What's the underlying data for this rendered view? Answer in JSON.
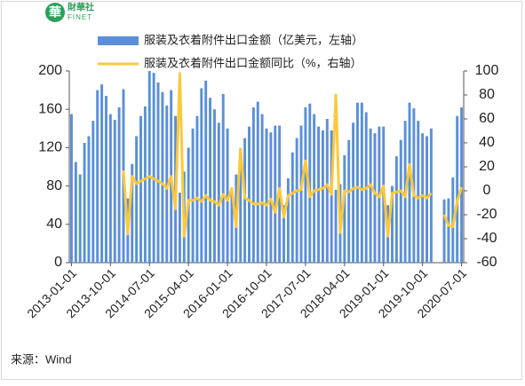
{
  "logo": {
    "mark": "華",
    "name": "財華社",
    "sub": "FINET"
  },
  "source": "来源：Wind",
  "chart_data": {
    "type": "bar-line",
    "categories": [
      "2013-01-01",
      null,
      null,
      null,
      null,
      null,
      null,
      null,
      null,
      "2013-10-01",
      null,
      null,
      null,
      null,
      null,
      null,
      null,
      null,
      "2014-07-01",
      null,
      null,
      null,
      null,
      null,
      null,
      null,
      null,
      "2015-04-01",
      null,
      null,
      null,
      null,
      null,
      null,
      null,
      null,
      "2016-01-01",
      null,
      null,
      null,
      null,
      null,
      null,
      null,
      null,
      "2016-10-01",
      null,
      null,
      null,
      null,
      null,
      null,
      null,
      null,
      "2017-07-01",
      null,
      null,
      null,
      null,
      null,
      null,
      null,
      null,
      "2018-04-01",
      null,
      null,
      null,
      null,
      null,
      null,
      null,
      null,
      "2019-01-01",
      null,
      null,
      null,
      null,
      null,
      null,
      null,
      null,
      "2019-10-01",
      null,
      null,
      null,
      null,
      null,
      null,
      null,
      null,
      "2020-07-01"
    ],
    "series": [
      {
        "name": "服装及衣着附件出口金额（亿美元，左轴）",
        "type": "bar",
        "color": "#5b8fd8",
        "values": [
          155,
          105,
          92,
          125,
          132,
          148,
          180,
          186,
          174,
          155,
          149,
          162,
          181,
          67,
          103,
          132,
          153,
          163,
          200,
          198,
          188,
          178,
          164,
          180,
          153,
          73,
          95,
          120,
          140,
          153,
          182,
          190,
          172,
          160,
          146,
          176,
          140,
          76,
          92,
          118,
          130,
          142,
          162,
          168,
          155,
          140,
          136,
          143,
          143,
          60,
          88,
          115,
          130,
          143,
          162,
          166,
          155,
          142,
          138,
          150,
          138,
          76,
          82,
          112,
          128,
          146,
          167,
          167,
          157,
          140,
          135,
          142,
          142,
          60,
          80,
          111,
          128,
          148,
          167,
          161,
          148,
          135,
          132,
          140,
          null,
          null,
          66,
          67,
          89,
          153,
          162
        ]
      },
      {
        "name": "服装及衣着附件出口金额同比（%，右轴）",
        "type": "line",
        "axis": "y2",
        "color": "#fbc93d",
        "values": [
          null,
          null,
          null,
          null,
          null,
          null,
          null,
          null,
          null,
          null,
          null,
          null,
          17,
          -36,
          12,
          6,
          8,
          10,
          12,
          10,
          8,
          6,
          2,
          12,
          -15,
          98,
          -38,
          -8,
          -8,
          -6,
          -9,
          -4,
          -8,
          -9,
          -12,
          -3,
          -8,
          2,
          -30,
          35,
          -6,
          -8,
          -11,
          -11,
          -10,
          -12,
          -7,
          -18,
          2,
          -22,
          -4,
          -2,
          0,
          1,
          25,
          -5,
          0,
          1,
          2,
          5,
          -3,
          80,
          -35,
          0,
          -1,
          2,
          3,
          1,
          2,
          5,
          -2,
          -5,
          4,
          -38,
          -2,
          -1,
          0,
          -5,
          22,
          -4,
          -6,
          -4,
          -6,
          -2,
          null,
          null,
          -20,
          -29,
          -30,
          -9,
          3
        ]
      }
    ],
    "ylim": [
      0,
      200
    ],
    "yticks": [
      0,
      40,
      80,
      120,
      160,
      200
    ],
    "y2lim": [
      -60,
      100
    ],
    "y2ticks": [
      -60,
      -40,
      -20,
      0,
      20,
      40,
      60,
      80,
      100
    ]
  }
}
